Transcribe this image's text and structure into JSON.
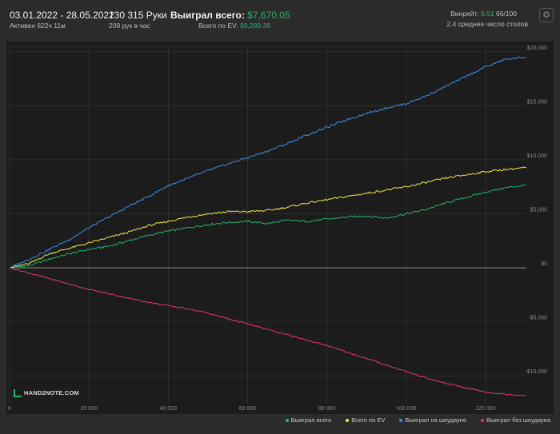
{
  "header": {
    "date_range": "03.01.2022 - 28.05.2022",
    "active": "Активен 622ч 11м",
    "hands": "130 315 Руки",
    "hands_per_hour": "209 рук в час",
    "won_label": "Выиграл всего:",
    "won_value": "$7,670.05",
    "ev_label": "Всего по EV:",
    "ev_value": "$9,289.39",
    "winrate_label": "Винрейт:",
    "winrate_value": "6.51",
    "winrate_unit": "66/100",
    "tables_avg": "2.4 среднее число столов",
    "settings_icon": "gear-icon"
  },
  "logo": {
    "text": "HAND2NOTE.COM"
  },
  "colors": {
    "total": "#27b36c",
    "ev": "#f2e84b",
    "showdown": "#3b8fe6",
    "nonshowdown": "#e0386a",
    "grid": "#3a3a3a",
    "zero": "#9a9a9a"
  },
  "chart_data": {
    "type": "line",
    "title": "",
    "xlabel": "",
    "ylabel": "",
    "xlim": [
      0,
      130315
    ],
    "ylim": [
      -12500,
      20500
    ],
    "x_ticks": [
      0,
      20000,
      40000,
      60000,
      80000,
      100000,
      120000
    ],
    "x_tick_labels": [
      "0",
      "20 000",
      "40 000",
      "60 000",
      "80 000",
      "100 000",
      "120 000"
    ],
    "y_ticks": [
      -10000,
      -5000,
      0,
      5000,
      10000,
      15000,
      20000
    ],
    "y_tick_labels": [
      "-$10,000",
      "-$5,000",
      "$0",
      "$5,000",
      "$10,000",
      "$15,000",
      "$20,000"
    ],
    "grid": true,
    "legend_position": "bottom-right",
    "x": [
      0,
      5000,
      10000,
      15000,
      20000,
      25000,
      30000,
      35000,
      40000,
      45000,
      50000,
      55000,
      60000,
      65000,
      70000,
      75000,
      80000,
      85000,
      90000,
      95000,
      100000,
      105000,
      110000,
      115000,
      120000,
      125000,
      130315
    ],
    "series": [
      {
        "name": "Выиграл всего",
        "color_key": "total",
        "values": [
          0,
          200,
          800,
          1300,
          1700,
          2000,
          2500,
          3000,
          3400,
          3700,
          4000,
          4200,
          4300,
          4100,
          4400,
          4300,
          4500,
          4700,
          4800,
          4600,
          5000,
          5400,
          6000,
          6500,
          7000,
          7400,
          7670
        ]
      },
      {
        "name": "Всего по EV",
        "color_key": "ev",
        "values": [
          0,
          400,
          1300,
          1800,
          2300,
          2800,
          3300,
          3900,
          4300,
          4700,
          5000,
          5200,
          5200,
          5300,
          5600,
          6000,
          6300,
          6600,
          6900,
          7200,
          7500,
          7900,
          8300,
          8600,
          8900,
          9100,
          9289
        ]
      },
      {
        "name": "Выиграл на шоудауне",
        "color_key": "showdown",
        "values": [
          0,
          800,
          1700,
          2600,
          3700,
          4700,
          5700,
          6600,
          7600,
          8300,
          9000,
          9600,
          10200,
          10800,
          11500,
          12300,
          13000,
          13700,
          14300,
          14800,
          15200,
          15900,
          16800,
          17700,
          18600,
          19300,
          19500
        ]
      },
      {
        "name": "Выиграл без шоудауна",
        "color_key": "nonshowdown",
        "values": [
          0,
          -500,
          -1000,
          -1500,
          -2000,
          -2400,
          -2800,
          -3200,
          -3500,
          -3800,
          -4200,
          -4700,
          -5200,
          -5700,
          -6200,
          -6700,
          -7200,
          -7800,
          -8400,
          -9000,
          -9600,
          -10200,
          -10700,
          -11100,
          -11500,
          -11700,
          -11830
        ]
      }
    ]
  }
}
